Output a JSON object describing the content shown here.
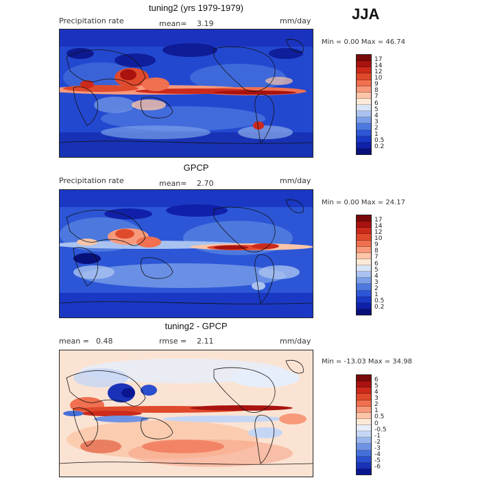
{
  "season": "JJA",
  "panels": [
    {
      "title": "tuning2 (yrs 1979-1979)",
      "left_label": "Precipitation rate",
      "mean_label": "mean=",
      "mean_value": "3.19",
      "units": "mm/day",
      "minmax": "Min =    0.00 Max =   46.74",
      "colorbar": {
        "labels": [
          "17",
          "14",
          "12",
          "10",
          "9",
          "8",
          "7",
          "6",
          "5",
          "4",
          "3",
          "2",
          "1",
          "0.5",
          "0.2"
        ],
        "colors": [
          "#7a0a0a",
          "#a8120f",
          "#cc2a1b",
          "#e04a2c",
          "#f07050",
          "#f79a7c",
          "#fbc5a8",
          "#fde9d8",
          "#d8e4f7",
          "#a9c2f0",
          "#7b9fe8",
          "#4d79de",
          "#2c56d6",
          "#1a38c4",
          "#1020a8",
          "#08107a"
        ]
      }
    },
    {
      "title": "GPCP",
      "left_label": "Precipitation rate",
      "mean_label": "mean=",
      "mean_value": "2.70",
      "units": "mm/day",
      "minmax": "Min =    0.00 Max =   24.17",
      "colorbar": {
        "labels": [
          "17",
          "14",
          "12",
          "10",
          "9",
          "8",
          "7",
          "6",
          "5",
          "4",
          "3",
          "2",
          "1",
          "0.5",
          "0.2"
        ],
        "colors": [
          "#7a0a0a",
          "#a8120f",
          "#cc2a1b",
          "#e04a2c",
          "#f07050",
          "#f79a7c",
          "#fbc5a8",
          "#fde9d8",
          "#d8e4f7",
          "#a9c2f0",
          "#7b9fe8",
          "#4d79de",
          "#2c56d6",
          "#1a38c4",
          "#1020a8",
          "#08107a"
        ]
      }
    },
    {
      "title": "tuning2 - GPCP",
      "left_label": "mean =",
      "mean_label": "",
      "mean_value": "0.48",
      "rmse_label": "rmse =",
      "rmse_value": "2.11",
      "units": "mm/day",
      "minmax": "Min = -13.03 Max =   34.98",
      "colorbar": {
        "labels": [
          "6",
          "5",
          "4",
          "3",
          "2",
          "1",
          "0.5",
          "0",
          "-0.5",
          "-1",
          "-2",
          "-3",
          "-4",
          "-5",
          "-6"
        ],
        "colors": [
          "#7a0a0a",
          "#a8120f",
          "#cc2a1b",
          "#e04a2c",
          "#f07050",
          "#f79a7c",
          "#fbc5a8",
          "#fde9d8",
          "#e6eefb",
          "#c5d6f5",
          "#9bb6ee",
          "#6f93e4",
          "#4570da",
          "#2a4fcf",
          "#1a32b8",
          "#0a1690"
        ]
      }
    }
  ]
}
